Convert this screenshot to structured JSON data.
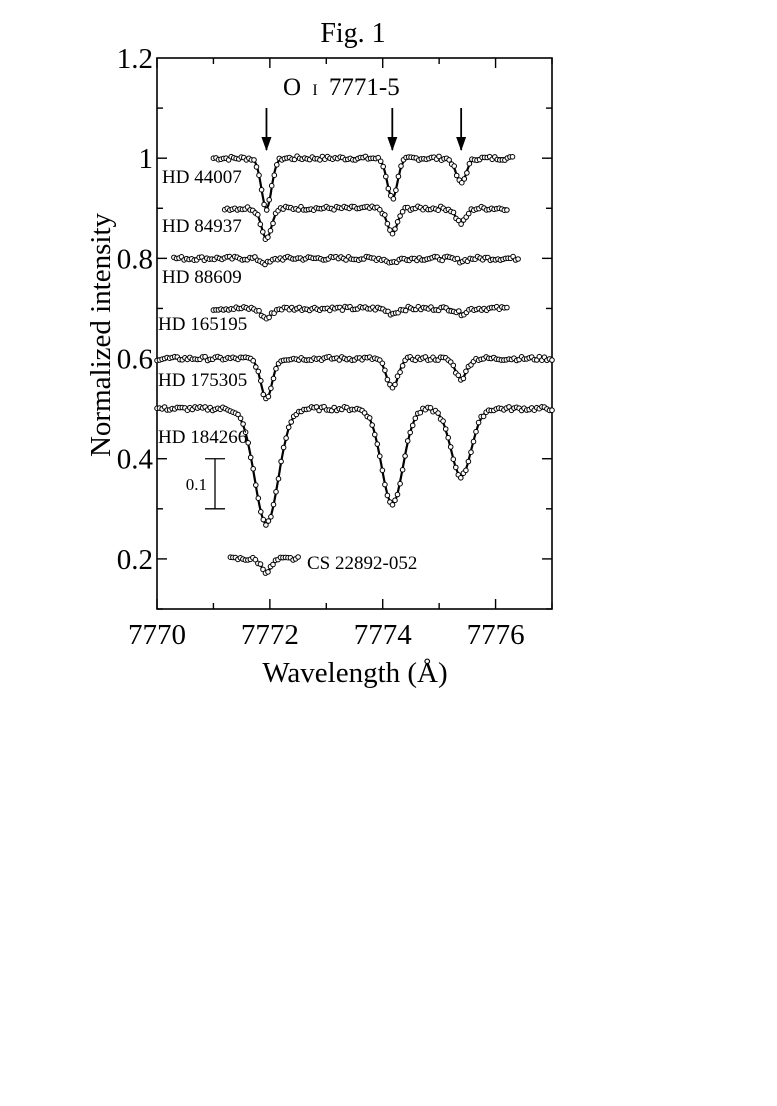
{
  "figure_label": "Fig. 1",
  "chart_data": {
    "type": "line",
    "title": "O I 7771-5",
    "title_main": "O",
    "title_ion": "I",
    "title_rest": "7771-5",
    "xlabel": "Wavelength (Å)",
    "ylabel": "Normalized intensity",
    "xlim": [
      7770,
      7777
    ],
    "ylim": [
      0.1,
      1.2
    ],
    "xticks": [
      7770,
      7772,
      7774,
      7776
    ],
    "yticks": [
      0.2,
      0.4,
      0.6,
      0.8,
      1,
      1.2
    ],
    "ytick_labels": [
      "0.2",
      "0.4",
      "0.6",
      "0.8",
      "1",
      "1.2"
    ],
    "grid": false,
    "line_markers": [
      7771.94,
      7774.17,
      7775.39
    ],
    "scale_bar": {
      "label": "0.1",
      "y_bottom": 0.3,
      "y_top": 0.4
    },
    "series": [
      {
        "name": "HD 44007",
        "continuum": 1.0,
        "x_range": [
          7771.0,
          7776.3
        ],
        "depths": [
          0.1,
          0.08,
          0.05
        ],
        "widths": [
          0.09,
          0.09,
          0.09
        ]
      },
      {
        "name": "HD 84937",
        "continuum": 0.9,
        "x_range": [
          7771.2,
          7776.2
        ],
        "depths": [
          0.06,
          0.05,
          0.03
        ],
        "widths": [
          0.09,
          0.09,
          0.09
        ]
      },
      {
        "name": "HD 88609",
        "continuum": 0.8,
        "x_range": [
          7770.3,
          7776.4
        ],
        "depths": [
          0.01,
          0.008,
          0.005
        ],
        "widths": [
          0.09,
          0.09,
          0.09
        ]
      },
      {
        "name": "HD 165195",
        "continuum": 0.7,
        "x_range": [
          7771.0,
          7776.2
        ],
        "depths": [
          0.02,
          0.01,
          0.01
        ],
        "widths": [
          0.09,
          0.09,
          0.09
        ]
      },
      {
        "name": "HD 175305",
        "continuum": 0.6,
        "x_range": [
          7770.0,
          7777.0
        ],
        "depths": [
          0.08,
          0.06,
          0.04
        ],
        "widths": [
          0.1,
          0.1,
          0.1
        ]
      },
      {
        "name": "HD 184266",
        "continuum": 0.5,
        "x_range": [
          7770.0,
          7777.0
        ],
        "depths": [
          0.23,
          0.19,
          0.135
        ],
        "widths": [
          0.21,
          0.19,
          0.18
        ]
      },
      {
        "name": "CS 22892-052",
        "continuum": 0.2,
        "x_range": [
          7771.3,
          7772.5
        ],
        "depths": [
          0.025,
          0,
          0
        ],
        "widths": [
          0.09,
          0.09,
          0.09
        ]
      }
    ]
  }
}
